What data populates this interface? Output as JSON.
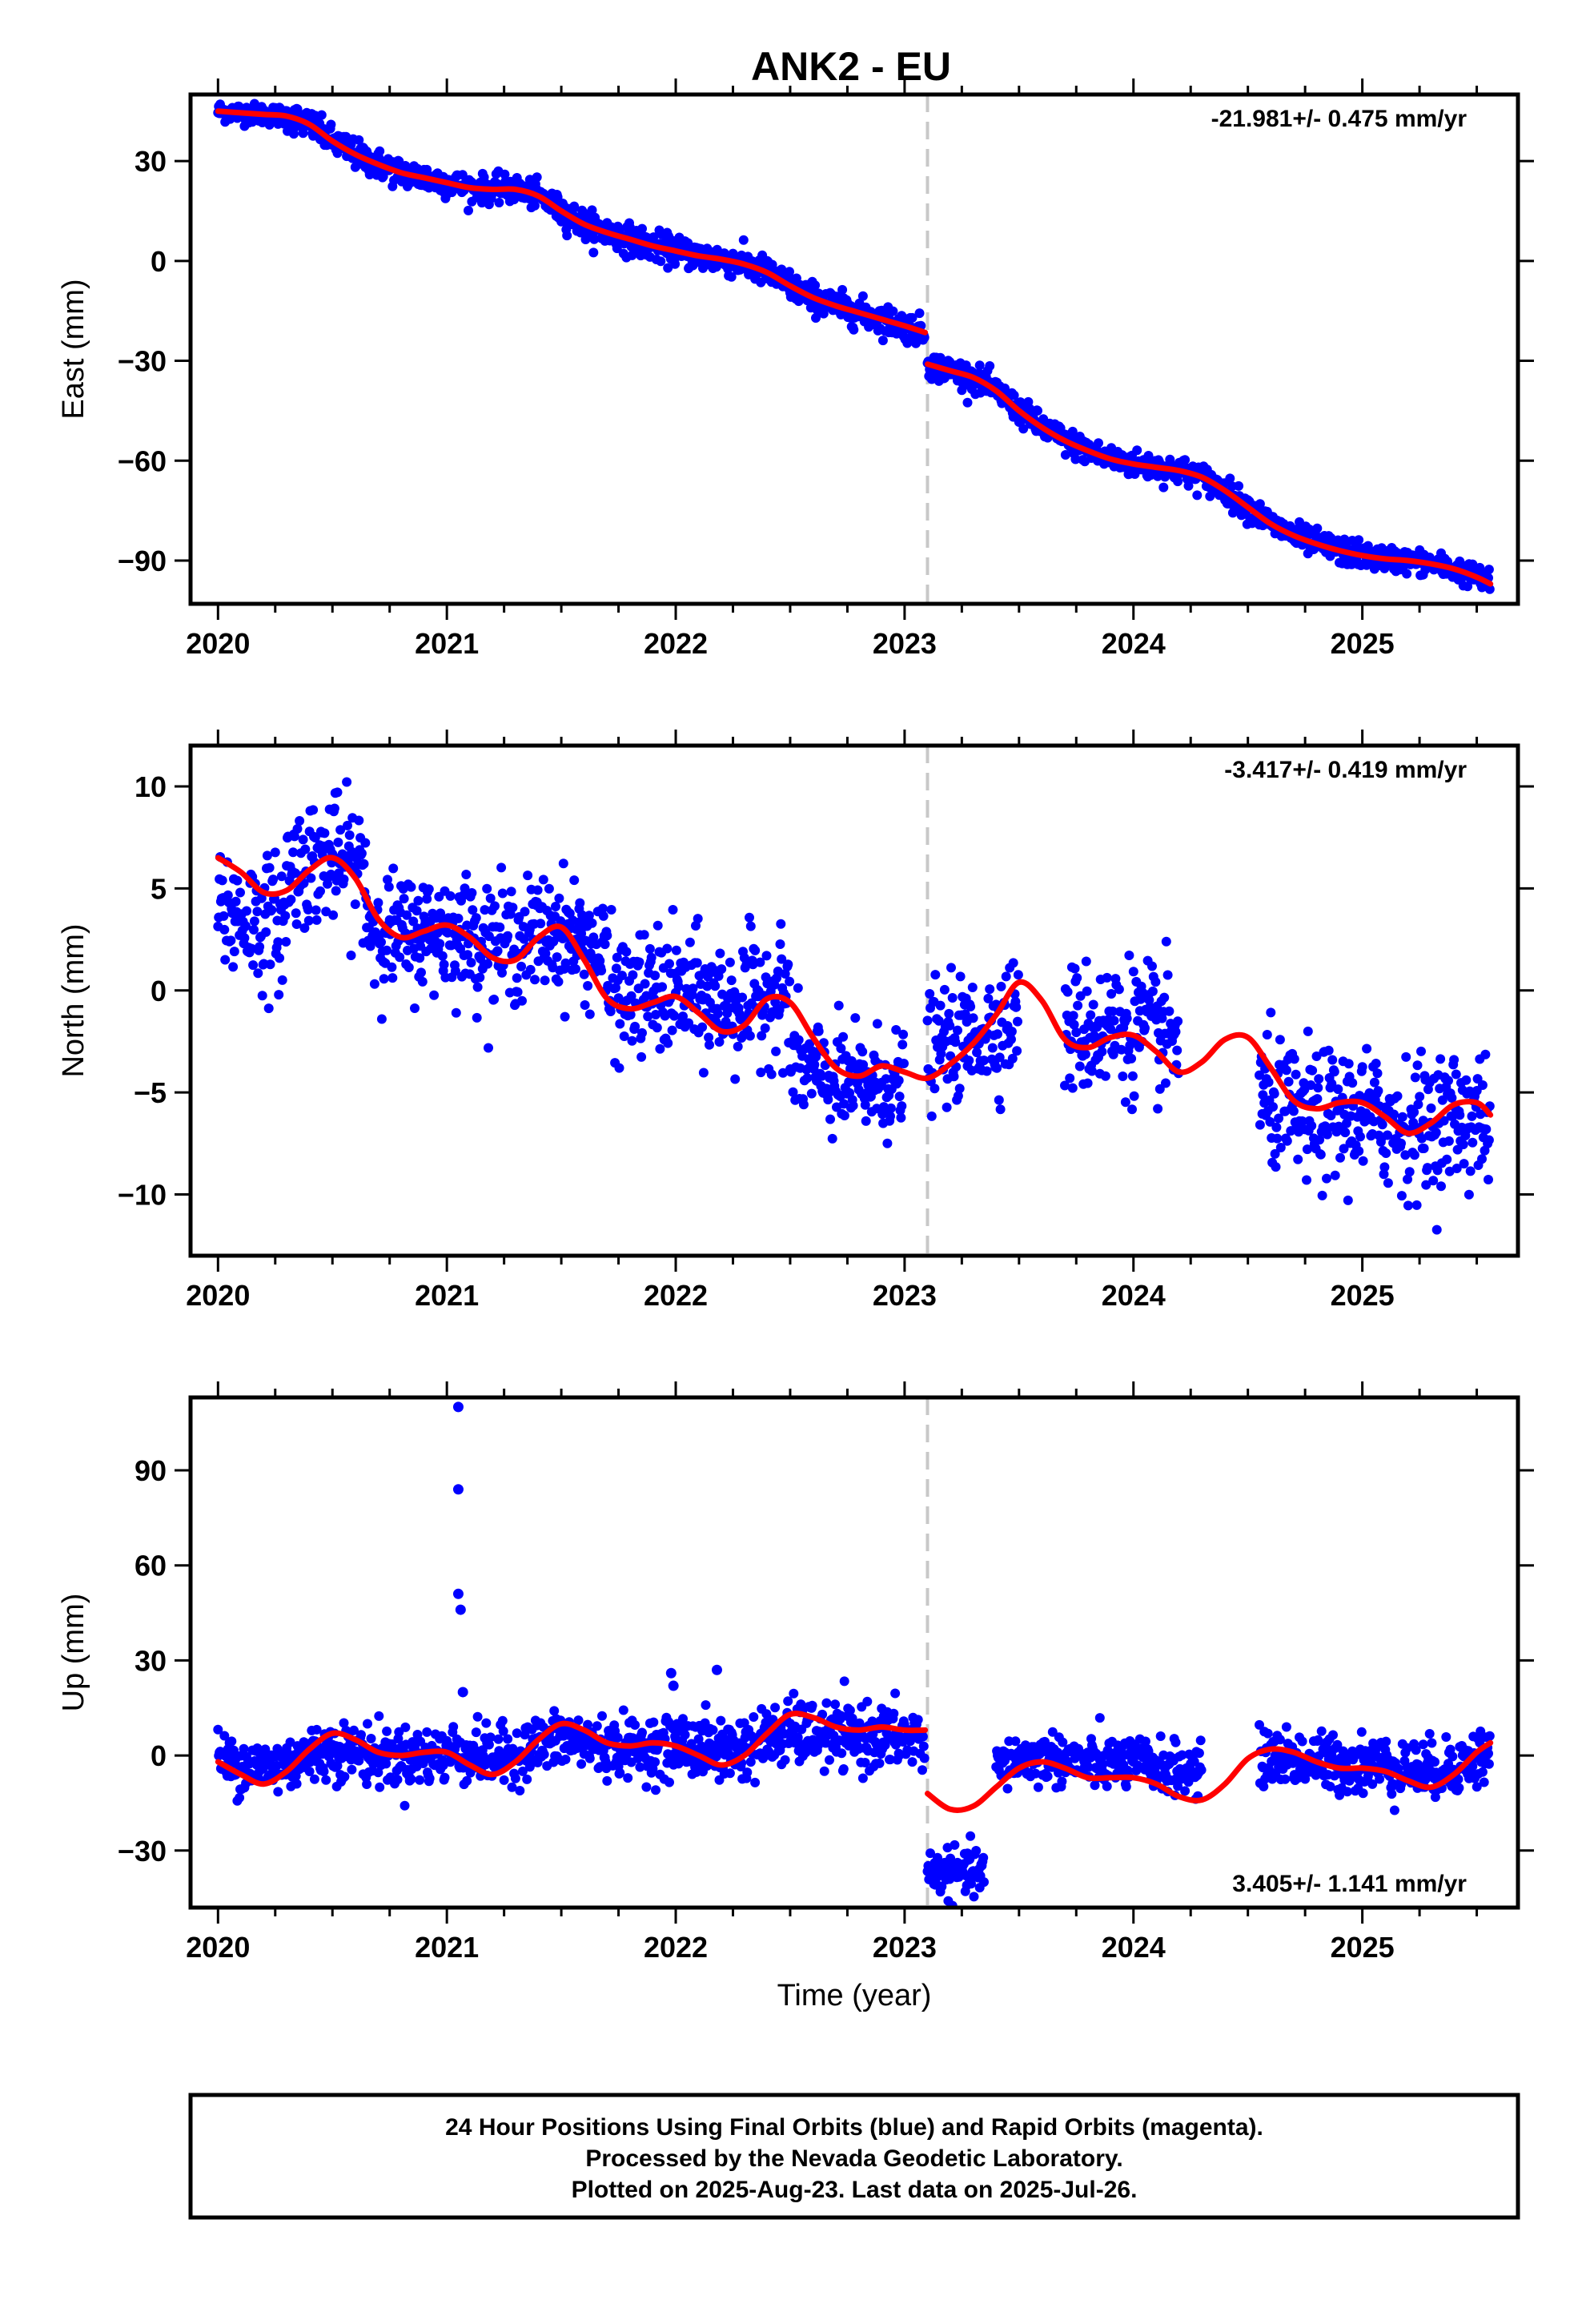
{
  "title": "ANK2 - EU",
  "footer": {
    "line1": "24 Hour Positions Using Final Orbits (blue) and Rapid Orbits (magenta).",
    "line2": "Processed by the Nevada Geodetic Laboratory.",
    "line3": "Plotted on 2025-Aug-23. Last data on 2025-Jul-26."
  },
  "colors": {
    "points": "#0000ff",
    "fit": "#ff0000",
    "event": "#c8c8c8"
  },
  "chart_data": [
    {
      "type": "scatter",
      "ylabel": "East (mm)",
      "xlabel": "",
      "rate_label": "-21.981+/- 0.475 mm/yr",
      "xlim": [
        2019.88,
        2025.68
      ],
      "ylim": [
        -103,
        50
      ],
      "xticks": [
        "2020",
        "2021",
        "2022",
        "2023",
        "2024",
        "2025"
      ],
      "yticks": [
        "30",
        "0",
        "−30",
        "−60",
        "−90"
      ],
      "ytick_values": [
        30,
        0,
        -30,
        -60,
        -90
      ],
      "event_line_x": 2023.1,
      "fit": {
        "name": "fit",
        "x": [
          2020.0,
          2020.1,
          2020.2,
          2020.3,
          2020.4,
          2020.5,
          2020.6,
          2020.7,
          2020.8,
          2020.9,
          2021.0,
          2021.1,
          2021.2,
          2021.3,
          2021.4,
          2021.5,
          2021.6,
          2021.7,
          2021.8,
          2021.9,
          2022.0,
          2022.1,
          2022.2,
          2022.3,
          2022.4,
          2022.5,
          2022.6,
          2022.7,
          2022.8,
          2022.9,
          2023.0,
          2023.09,
          2023.1,
          2023.2,
          2023.3,
          2023.4,
          2023.5,
          2023.6,
          2023.7,
          2023.8,
          2023.9,
          2024.0,
          2024.1,
          2024.2,
          2024.3,
          2024.4,
          2024.5,
          2024.6,
          2024.7,
          2024.8,
          2024.9,
          2025.0,
          2025.1,
          2025.2,
          2025.3,
          2025.4,
          2025.5,
          2025.56
        ],
        "y": [
          45,
          44.5,
          44,
          43.5,
          41,
          36,
          32,
          29,
          26.5,
          25,
          23.5,
          22,
          21.5,
          21.5,
          19.5,
          15,
          11,
          8.5,
          6.5,
          4.5,
          3,
          1.5,
          0.5,
          -1,
          -3.5,
          -7.5,
          -11,
          -13.5,
          -15.5,
          -17.5,
          -19.5,
          -21.5,
          -31,
          -33,
          -35,
          -39,
          -45,
          -50,
          -54,
          -57,
          -59.5,
          -61,
          -62,
          -63,
          -65,
          -69,
          -74,
          -79,
          -82.5,
          -85,
          -87,
          -88.5,
          -89.5,
          -90,
          -91,
          -92.5,
          -95,
          -97
        ]
      },
      "point_groups": [
        {
          "x_range": [
            2020.0,
            2020.3
          ],
          "center": 44.5,
          "spread": 1.5
        },
        {
          "x_range": [
            2020.3,
            2021.0
          ],
          "center": 32,
          "spread": 2.2
        },
        {
          "x_range": [
            2021.0,
            2021.5
          ],
          "center": 21.5,
          "spread": 2.0
        },
        {
          "x_range": [
            2021.5,
            2022.0
          ],
          "center": 9,
          "spread": 2.2
        },
        {
          "x_range": [
            2022.0,
            2023.09
          ],
          "center": -9,
          "spread": 2.2
        },
        {
          "x_range": [
            2023.1,
            2024.0
          ],
          "center": -46,
          "spread": 2.0
        },
        {
          "x_range": [
            2024.0,
            2025.0
          ],
          "center": -72,
          "spread": 2.0
        },
        {
          "x_range": [
            2025.0,
            2025.56
          ],
          "center": -91,
          "spread": 1.8
        }
      ]
    },
    {
      "type": "scatter",
      "ylabel": "North (mm)",
      "xlabel": "",
      "rate_label": "-3.417+/- 0.419 mm/yr",
      "xlim": [
        2019.88,
        2025.68
      ],
      "ylim": [
        -13,
        12
      ],
      "xticks": [
        "2020",
        "2021",
        "2022",
        "2023",
        "2024",
        "2025"
      ],
      "yticks": [
        "10",
        "5",
        "0",
        "−5",
        "−10"
      ],
      "ytick_values": [
        10,
        5,
        0,
        -5,
        -10
      ],
      "event_line_x": 2023.1,
      "fit": {
        "name": "fit",
        "x": [
          2020.0,
          2020.1,
          2020.2,
          2020.3,
          2020.4,
          2020.5,
          2020.6,
          2020.7,
          2020.8,
          2020.9,
          2021.0,
          2021.1,
          2021.2,
          2021.3,
          2021.4,
          2021.5,
          2021.6,
          2021.7,
          2021.8,
          2021.9,
          2022.0,
          2022.1,
          2022.2,
          2022.3,
          2022.4,
          2022.5,
          2022.6,
          2022.7,
          2022.8,
          2022.9,
          2023.0,
          2023.1,
          2023.2,
          2023.3,
          2023.4,
          2023.5,
          2023.6,
          2023.7,
          2023.8,
          2023.9,
          2024.0,
          2024.1,
          2024.2,
          2024.3,
          2024.4,
          2024.5,
          2024.6,
          2024.7,
          2024.8,
          2024.9,
          2025.0,
          2025.1,
          2025.2,
          2025.3,
          2025.4,
          2025.5,
          2025.56
        ],
        "y": [
          6.5,
          5.8,
          4.8,
          4.9,
          5.9,
          6.5,
          5.5,
          3.5,
          2.6,
          2.9,
          3.2,
          2.6,
          1.6,
          1.5,
          2.6,
          3.1,
          1.5,
          -0.4,
          -0.9,
          -0.6,
          -0.3,
          -1.1,
          -2.0,
          -1.7,
          -0.4,
          -0.6,
          -2.3,
          -3.8,
          -4.2,
          -3.7,
          -4.0,
          -4.3,
          -3.6,
          -2.6,
          -1.2,
          0.4,
          -0.5,
          -2.4,
          -2.8,
          -2.3,
          -2.2,
          -3.0,
          -4.0,
          -3.5,
          -2.4,
          -2.3,
          -3.8,
          -5.4,
          -5.8,
          -5.5,
          -5.5,
          -6.2,
          -7.0,
          -6.5,
          -5.6,
          -5.5,
          -6.1
        ]
      },
      "point_groups": [
        {
          "x_range": [
            2020.0,
            2020.3
          ],
          "center": 2.5,
          "spread": 1.6
        },
        {
          "x_range": [
            2020.3,
            2020.65
          ],
          "center": 6.5,
          "spread": 1.5
        },
        {
          "x_range": [
            2020.65,
            2021.7
          ],
          "center": 2.8,
          "spread": 1.4
        },
        {
          "x_range": [
            2021.7,
            2022.5
          ],
          "center": 0,
          "spread": 1.5
        },
        {
          "x_range": [
            2022.5,
            2023.0
          ],
          "center": -5,
          "spread": 1.3
        },
        {
          "x_range": [
            2023.1,
            2023.5
          ],
          "center": -2,
          "spread": 1.4
        },
        {
          "x_range": [
            2023.7,
            2024.2
          ],
          "center": -1.5,
          "spread": 1.6
        },
        {
          "x_range": [
            2024.55,
            2025.56
          ],
          "center": -6.5,
          "spread": 1.6
        }
      ]
    },
    {
      "type": "scatter",
      "ylabel": "Up (mm)",
      "xlabel": "Time (year)",
      "rate_label": "3.405+/- 1.141 mm/yr",
      "xlim": [
        2019.88,
        2025.68
      ],
      "ylim": [
        -48,
        113
      ],
      "xticks": [
        "2020",
        "2021",
        "2022",
        "2023",
        "2024",
        "2025"
      ],
      "yticks": [
        "90",
        "60",
        "30",
        "0",
        "−30"
      ],
      "ytick_values": [
        90,
        60,
        30,
        0,
        -30
      ],
      "event_line_x": 2023.1,
      "fit": {
        "name": "fit",
        "x": [
          2020.0,
          2020.1,
          2020.2,
          2020.3,
          2020.4,
          2020.5,
          2020.6,
          2020.7,
          2020.8,
          2020.9,
          2021.0,
          2021.1,
          2021.2,
          2021.3,
          2021.4,
          2021.5,
          2021.6,
          2021.7,
          2021.8,
          2021.9,
          2022.0,
          2022.1,
          2022.2,
          2022.3,
          2022.4,
          2022.5,
          2022.6,
          2022.7,
          2022.8,
          2022.9,
          2023.0,
          2023.09,
          2023.1,
          2023.2,
          2023.3,
          2023.4,
          2023.5,
          2023.6,
          2023.7,
          2023.8,
          2023.9,
          2024.0,
          2024.1,
          2024.2,
          2024.3,
          2024.4,
          2024.5,
          2024.6,
          2024.7,
          2024.8,
          2024.9,
          2025.0,
          2025.1,
          2025.2,
          2025.3,
          2025.4,
          2025.5,
          2025.56
        ],
        "y": [
          -2,
          -6,
          -9,
          -5,
          2,
          7,
          5,
          1,
          0,
          1,
          1,
          -3,
          -6,
          -2,
          5,
          10,
          8,
          4,
          3,
          4,
          3,
          0,
          -3,
          0,
          7,
          13,
          12,
          9,
          8,
          9,
          8,
          8,
          -12,
          -17,
          -16,
          -10,
          -4,
          -2,
          -4,
          -7,
          -7,
          -7,
          -9,
          -13,
          -14,
          -9,
          -1,
          2,
          1,
          -2,
          -4,
          -4,
          -5,
          -8,
          -10,
          -6,
          1,
          4
        ]
      },
      "point_groups": [
        {
          "x_range": [
            2020.0,
            2021.0
          ],
          "center": -1,
          "spread": 4.5
        },
        {
          "x_range": [
            2021.0,
            2022.0
          ],
          "center": 2,
          "spread": 4.5
        },
        {
          "x_range": [
            2022.0,
            2023.09
          ],
          "center": 4,
          "spread": 5
        },
        {
          "x_range": [
            2023.1,
            2023.35
          ],
          "center": -37,
          "spread": 3.5
        },
        {
          "x_range": [
            2023.4,
            2024.3
          ],
          "center": 0,
          "spread": 4
        },
        {
          "x_range": [
            2024.55,
            2025.56
          ],
          "center": -2,
          "spread": 4.5
        }
      ],
      "outliers": [
        {
          "x": 2021.05,
          "y": 110
        },
        {
          "x": 2021.05,
          "y": 84
        },
        {
          "x": 2021.05,
          "y": 51
        },
        {
          "x": 2021.06,
          "y": 46
        },
        {
          "x": 2021.07,
          "y": 20
        },
        {
          "x": 2021.98,
          "y": 26
        },
        {
          "x": 2021.99,
          "y": 22
        },
        {
          "x": 2022.18,
          "y": 27
        }
      ]
    }
  ]
}
